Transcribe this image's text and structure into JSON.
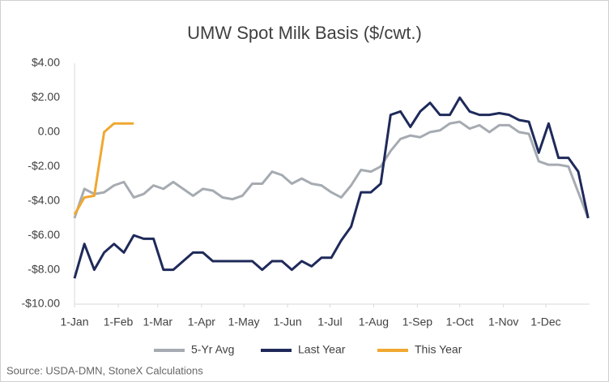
{
  "chart_data": {
    "type": "line",
    "title": "UMW Spot Milk Basis ($/cwt.)",
    "source": "Source: USDA-DMN, StoneX Calculations",
    "x": [
      0,
      7,
      14,
      21,
      28,
      35,
      42,
      49,
      56,
      63,
      70,
      77,
      84,
      91,
      98,
      105,
      112,
      119,
      126,
      133,
      140,
      147,
      154,
      161,
      168,
      175,
      182,
      189,
      196,
      203,
      210,
      217,
      224,
      231,
      238,
      245,
      252,
      259,
      266,
      273,
      280,
      287,
      294,
      301,
      308,
      315,
      322,
      329,
      336,
      343,
      350,
      357,
      364
    ],
    "xlim": [
      0,
      365
    ],
    "xticks": [
      {
        "value": 0,
        "label": "1-Jan"
      },
      {
        "value": 31,
        "label": "1-Feb"
      },
      {
        "value": 59,
        "label": "1-Mar"
      },
      {
        "value": 90,
        "label": "1-Apr"
      },
      {
        "value": 120,
        "label": "1-May"
      },
      {
        "value": 151,
        "label": "1-Jun"
      },
      {
        "value": 181,
        "label": "1-Jul"
      },
      {
        "value": 212,
        "label": "1-Aug"
      },
      {
        "value": 243,
        "label": "1-Sep"
      },
      {
        "value": 273,
        "label": "1-Oct"
      },
      {
        "value": 304,
        "label": "1-Nov"
      },
      {
        "value": 334,
        "label": "1-Dec"
      }
    ],
    "ylim": [
      -10,
      4
    ],
    "yticks": [
      {
        "value": 4,
        "label": "$4.00"
      },
      {
        "value": 2,
        "label": "$2.00"
      },
      {
        "value": 0,
        "label": "0.00"
      },
      {
        "value": -2,
        "label": "-$2.00"
      },
      {
        "value": -4,
        "label": "-$4.00"
      },
      {
        "value": -6,
        "label": "-$6.00"
      },
      {
        "value": -8,
        "label": "-$8.00"
      },
      {
        "value": -10,
        "label": "-$10.00"
      }
    ],
    "grid": false,
    "legend": "bottom",
    "series": [
      {
        "name": "5-Yr Avg",
        "color": "#a6abb2",
        "values": [
          -5.0,
          -3.3,
          -3.6,
          -3.5,
          -3.1,
          -2.9,
          -3.8,
          -3.6,
          -3.1,
          -3.3,
          -2.9,
          -3.3,
          -3.7,
          -3.3,
          -3.4,
          -3.8,
          -3.9,
          -3.7,
          -3.0,
          -3.0,
          -2.3,
          -2.5,
          -3.0,
          -2.7,
          -3.0,
          -3.1,
          -3.5,
          -3.8,
          -3.1,
          -2.2,
          -2.3,
          -2.0,
          -1.1,
          -0.4,
          -0.2,
          -0.3,
          0.0,
          0.1,
          0.5,
          0.6,
          0.2,
          0.4,
          0.0,
          0.4,
          0.4,
          0.0,
          -0.1,
          -1.7,
          -1.9,
          -1.9,
          -2.0,
          -3.5,
          -5.0
        ]
      },
      {
        "name": "Last Year",
        "color": "#1f2a5a",
        "values": [
          -8.5,
          -6.5,
          -8.0,
          -7.0,
          -6.5,
          -7.0,
          -6.0,
          -6.2,
          -6.2,
          -8.0,
          -8.0,
          -7.5,
          -7.0,
          -7.0,
          -7.5,
          -7.5,
          -7.5,
          -7.5,
          -7.5,
          -8.0,
          -7.5,
          -7.5,
          -8.0,
          -7.5,
          -7.8,
          -7.3,
          -7.3,
          -6.3,
          -5.5,
          -3.5,
          -3.5,
          -3.0,
          1.0,
          1.2,
          0.3,
          1.2,
          1.7,
          1.0,
          1.0,
          2.0,
          1.2,
          1.0,
          1.0,
          1.1,
          1.0,
          0.7,
          0.6,
          -1.2,
          0.5,
          -1.5,
          -1.5,
          -2.3,
          -5.0
        ]
      },
      {
        "name": "This Year",
        "color": "#f0a830",
        "values": [
          -4.8,
          -3.8,
          -3.7,
          0.0,
          0.5,
          0.5,
          0.5,
          null,
          null,
          null,
          null,
          null,
          null,
          null,
          null,
          null,
          null,
          null,
          null,
          null,
          null,
          null,
          null,
          null,
          null,
          null,
          null,
          null,
          null,
          null,
          null,
          null,
          null,
          null,
          null,
          null,
          null,
          null,
          null,
          null,
          null,
          null,
          null,
          null,
          null,
          null,
          null,
          null,
          null,
          null,
          null,
          null,
          null
        ]
      }
    ]
  }
}
